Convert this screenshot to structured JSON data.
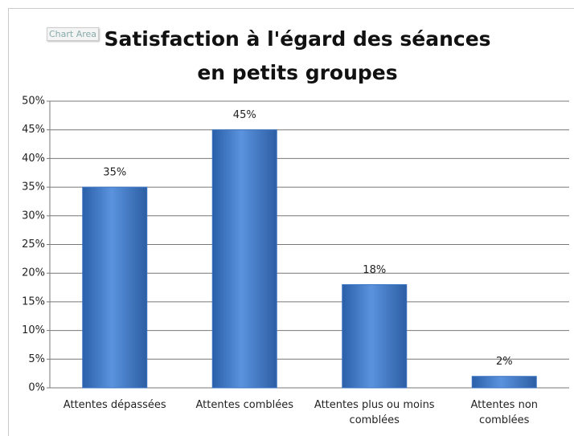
{
  "tooltip": "Chart Area",
  "chart_data": {
    "type": "bar",
    "title": "Satisfaction à l'égard des séances en petits groupes",
    "categories": [
      "Attentes dépassées",
      "Attentes comblées",
      "Attentes plus ou moins comblées",
      "Attentes non comblées"
    ],
    "values": [
      35,
      45,
      18,
      2
    ],
    "value_labels": [
      "35%",
      "45%",
      "18%",
      "2%"
    ],
    "color": "#3a73c4",
    "ylim": [
      0,
      50
    ],
    "yticks": [
      {
        "value": 0,
        "label": "0%"
      },
      {
        "value": 5,
        "label": "5%"
      },
      {
        "value": 10,
        "label": "10%"
      },
      {
        "value": 15,
        "label": "15%"
      },
      {
        "value": 20,
        "label": "20%"
      },
      {
        "value": 25,
        "label": "25%"
      },
      {
        "value": 30,
        "label": "30%"
      },
      {
        "value": 35,
        "label": "35%"
      },
      {
        "value": 40,
        "label": "40%"
      },
      {
        "value": 45,
        "label": "45%"
      },
      {
        "value": 50,
        "label": "50%"
      }
    ],
    "grid": true
  }
}
